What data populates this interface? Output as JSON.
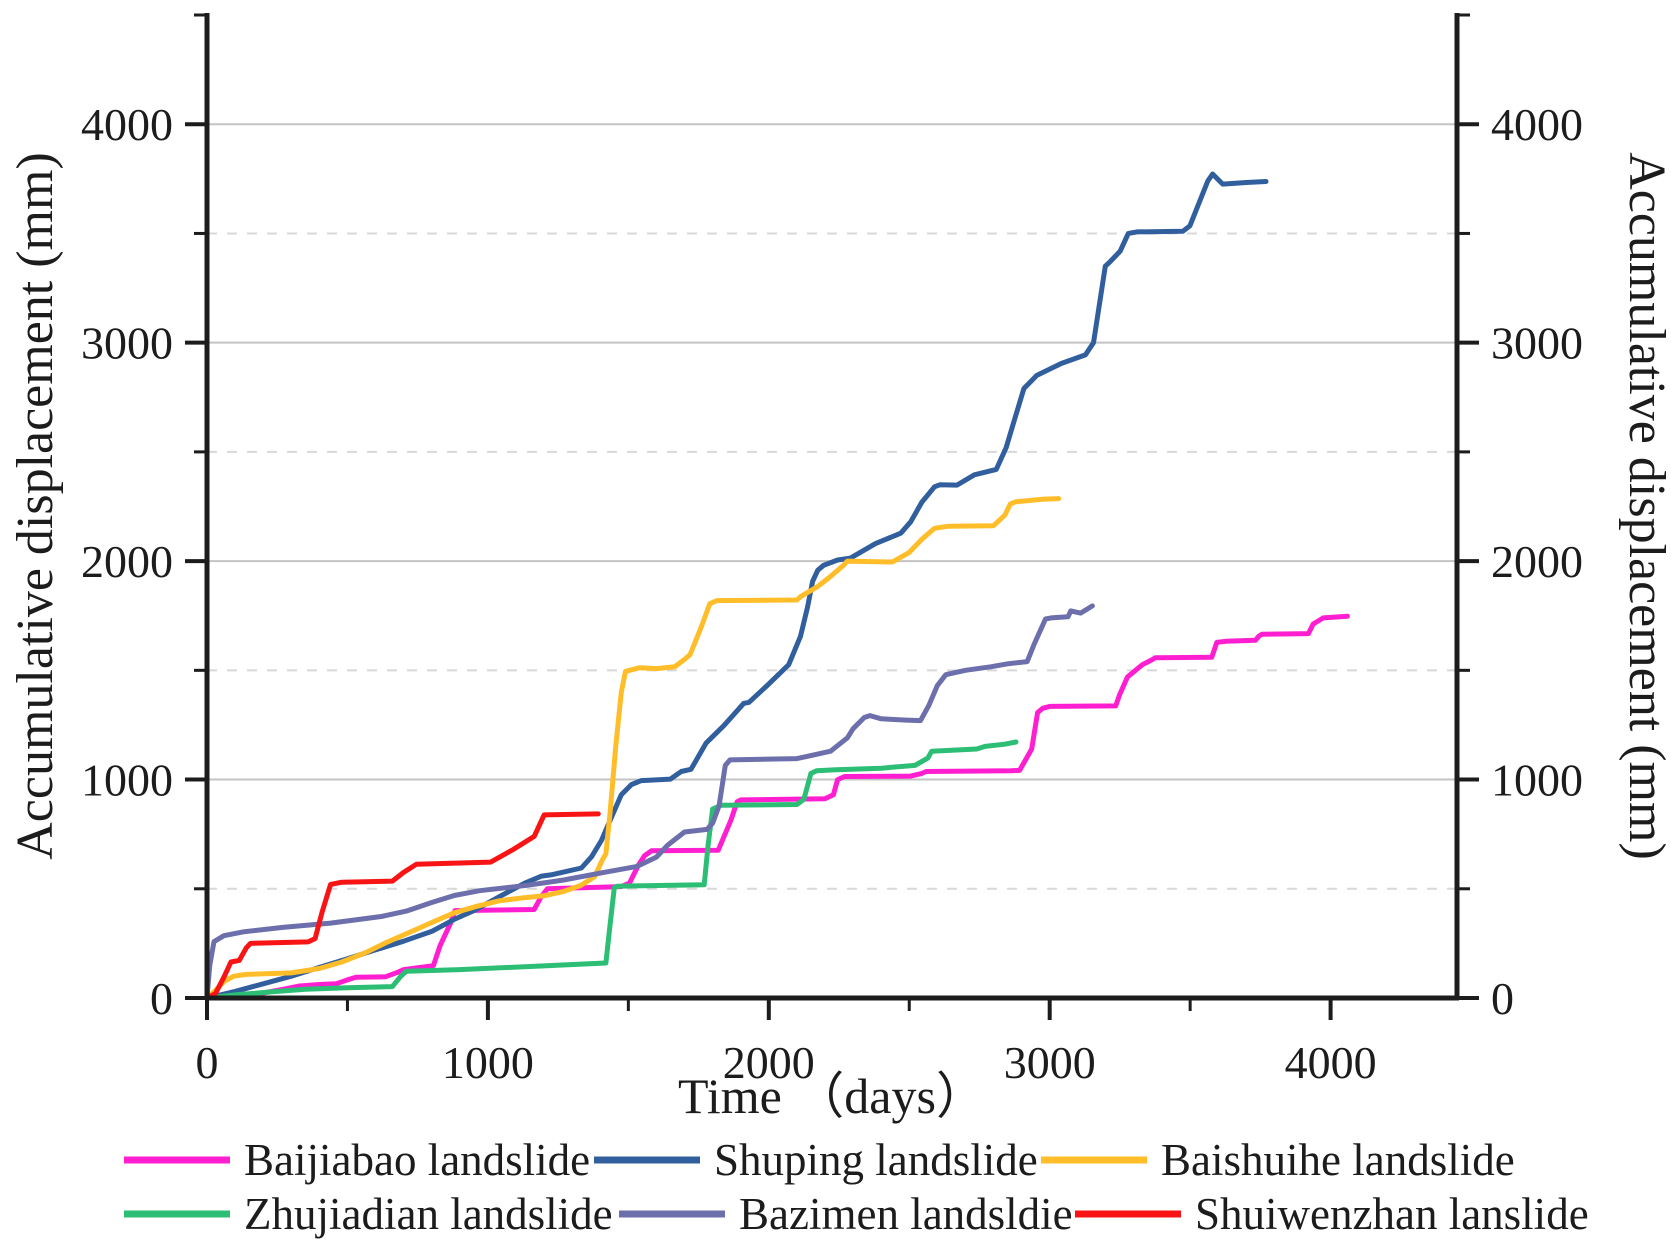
{
  "chart_data": {
    "type": "line",
    "title": "",
    "xlabel": "Time （days）",
    "ylabel_left": "Accumulative displacement (mm)",
    "ylabel_right": "Accumulative displacement (mm)",
    "xlim": [
      0,
      4450
    ],
    "ylim": [
      0,
      4500
    ],
    "x_major_ticks": [
      0,
      1000,
      2000,
      3000,
      4000
    ],
    "x_minor_ticks": [
      500,
      1500,
      2500,
      3500
    ],
    "y_major_ticks": [
      0,
      1000,
      2000,
      3000,
      4000
    ],
    "y_minor_ticks": [
      500,
      1500,
      2500,
      3500,
      4500
    ],
    "grid": {
      "major_style": "solid",
      "minor_style": "dashed",
      "major_color": "#c3c3c3",
      "minor_color": "#d8d8d8",
      "vertical_gridlines": false
    },
    "axis_color": "#1c1c1c",
    "legend_position": "bottom",
    "legend_rows": [
      [
        0,
        1,
        2
      ],
      [
        3,
        4,
        5
      ]
    ],
    "series": [
      {
        "name": "Baijiabao landslide",
        "color": "#ff1fd1",
        "points": [
          [
            0,
            0
          ],
          [
            150,
            5
          ],
          [
            210,
            25
          ],
          [
            270,
            40
          ],
          [
            330,
            55
          ],
          [
            400,
            62
          ],
          [
            460,
            65
          ],
          [
            505,
            85
          ],
          [
            530,
            95
          ],
          [
            635,
            97
          ],
          [
            680,
            118
          ],
          [
            700,
            130
          ],
          [
            806,
            148
          ],
          [
            830,
            240
          ],
          [
            866,
            340
          ],
          [
            883,
            400
          ],
          [
            1165,
            405
          ],
          [
            1190,
            465
          ],
          [
            1212,
            500
          ],
          [
            1475,
            510
          ],
          [
            1504,
            526
          ],
          [
            1536,
            609
          ],
          [
            1557,
            651
          ],
          [
            1582,
            674
          ],
          [
            1820,
            676
          ],
          [
            1865,
            814
          ],
          [
            1887,
            898
          ],
          [
            1900,
            907
          ],
          [
            2200,
            912
          ],
          [
            2230,
            930
          ],
          [
            2245,
            1000
          ],
          [
            2270,
            1014
          ],
          [
            2505,
            1016
          ],
          [
            2545,
            1028
          ],
          [
            2560,
            1037
          ],
          [
            2860,
            1040
          ],
          [
            2893,
            1042
          ],
          [
            2936,
            1140
          ],
          [
            2957,
            1307
          ],
          [
            2975,
            1326
          ],
          [
            3000,
            1335
          ],
          [
            3235,
            1337
          ],
          [
            3248,
            1386
          ],
          [
            3277,
            1470
          ],
          [
            3294,
            1488
          ],
          [
            3330,
            1526
          ],
          [
            3365,
            1549
          ],
          [
            3376,
            1558
          ],
          [
            3577,
            1560
          ],
          [
            3595,
            1628
          ],
          [
            3627,
            1633
          ],
          [
            3733,
            1638
          ],
          [
            3744,
            1656
          ],
          [
            3755,
            1665
          ],
          [
            3921,
            1668
          ],
          [
            3938,
            1712
          ],
          [
            3974,
            1740
          ],
          [
            4020,
            1744
          ],
          [
            4060,
            1748
          ]
        ]
      },
      {
        "name": "Shuping landslide",
        "color": "#315f9d",
        "points": [
          [
            0,
            0
          ],
          [
            100,
            30
          ],
          [
            200,
            65
          ],
          [
            300,
            100
          ],
          [
            400,
            140
          ],
          [
            500,
            180
          ],
          [
            600,
            220
          ],
          [
            700,
            260
          ],
          [
            800,
            305
          ],
          [
            880,
            360
          ],
          [
            950,
            400
          ],
          [
            1050,
            470
          ],
          [
            1130,
            525
          ],
          [
            1191,
            558
          ],
          [
            1230,
            565
          ],
          [
            1333,
            595
          ],
          [
            1369,
            647
          ],
          [
            1404,
            721
          ],
          [
            1440,
            828
          ],
          [
            1475,
            930
          ],
          [
            1511,
            977
          ],
          [
            1546,
            995
          ],
          [
            1650,
            1002
          ],
          [
            1688,
            1037
          ],
          [
            1723,
            1047
          ],
          [
            1777,
            1168
          ],
          [
            1840,
            1247
          ],
          [
            1911,
            1349
          ],
          [
            1929,
            1353
          ],
          [
            1996,
            1433
          ],
          [
            2071,
            1526
          ],
          [
            2113,
            1656
          ],
          [
            2138,
            1791
          ],
          [
            2156,
            1907
          ],
          [
            2174,
            1958
          ],
          [
            2195,
            1981
          ],
          [
            2245,
            2005
          ],
          [
            2291,
            2014
          ],
          [
            2380,
            2080
          ],
          [
            2470,
            2128
          ],
          [
            2505,
            2180
          ],
          [
            2545,
            2270
          ],
          [
            2590,
            2340
          ],
          [
            2610,
            2350
          ],
          [
            2670,
            2348
          ],
          [
            2732,
            2395
          ],
          [
            2810,
            2420
          ],
          [
            2845,
            2520
          ],
          [
            2873,
            2640
          ],
          [
            2908,
            2790
          ],
          [
            2954,
            2850
          ],
          [
            3042,
            2905
          ],
          [
            3127,
            2944
          ],
          [
            3156,
            3000
          ],
          [
            3198,
            3350
          ],
          [
            3216,
            3372
          ],
          [
            3251,
            3419
          ],
          [
            3280,
            3500
          ],
          [
            3310,
            3507
          ],
          [
            3474,
            3510
          ],
          [
            3499,
            3535
          ],
          [
            3563,
            3740
          ],
          [
            3580,
            3772
          ],
          [
            3616,
            3726
          ],
          [
            3700,
            3733
          ],
          [
            3770,
            3738
          ]
        ]
      },
      {
        "name": "Baishuihe landslide",
        "color": "#ffbe29",
        "points": [
          [
            0,
            0
          ],
          [
            30,
            35
          ],
          [
            60,
            75
          ],
          [
            95,
            100
          ],
          [
            140,
            108
          ],
          [
            300,
            115
          ],
          [
            400,
            135
          ],
          [
            480,
            165
          ],
          [
            560,
            205
          ],
          [
            640,
            255
          ],
          [
            720,
            300
          ],
          [
            800,
            345
          ],
          [
            880,
            390
          ],
          [
            960,
            420
          ],
          [
            1040,
            445
          ],
          [
            1120,
            458
          ],
          [
            1200,
            468
          ],
          [
            1270,
            488
          ],
          [
            1330,
            515
          ],
          [
            1380,
            555
          ],
          [
            1406,
            628
          ],
          [
            1420,
            660
          ],
          [
            1435,
            850
          ],
          [
            1455,
            1150
          ],
          [
            1475,
            1400
          ],
          [
            1490,
            1495
          ],
          [
            1540,
            1512
          ],
          [
            1600,
            1508
          ],
          [
            1665,
            1516
          ],
          [
            1700,
            1550
          ],
          [
            1720,
            1572
          ],
          [
            1760,
            1700
          ],
          [
            1790,
            1805
          ],
          [
            1815,
            1819
          ],
          [
            2100,
            1822
          ],
          [
            2113,
            1837
          ],
          [
            2174,
            1884
          ],
          [
            2220,
            1930
          ],
          [
            2266,
            1981
          ],
          [
            2280,
            2000
          ],
          [
            2440,
            1996
          ],
          [
            2500,
            2040
          ],
          [
            2545,
            2100
          ],
          [
            2590,
            2150
          ],
          [
            2640,
            2160
          ],
          [
            2800,
            2162
          ],
          [
            2840,
            2210
          ],
          [
            2860,
            2262
          ],
          [
            2880,
            2272
          ],
          [
            2980,
            2284
          ],
          [
            3032,
            2286
          ]
        ]
      },
      {
        "name": "Zhujiadian landslide",
        "color": "#2cbe74",
        "points": [
          [
            0,
            0
          ],
          [
            100,
            14
          ],
          [
            250,
            30
          ],
          [
            350,
            40
          ],
          [
            500,
            47
          ],
          [
            660,
            52
          ],
          [
            690,
            100
          ],
          [
            710,
            122
          ],
          [
            900,
            130
          ],
          [
            1150,
            144
          ],
          [
            1420,
            160
          ],
          [
            1432,
            300
          ],
          [
            1450,
            505
          ],
          [
            1460,
            512
          ],
          [
            1770,
            518
          ],
          [
            1784,
            700
          ],
          [
            1800,
            865
          ],
          [
            1830,
            882
          ],
          [
            2100,
            886
          ],
          [
            2125,
            910
          ],
          [
            2150,
            1028
          ],
          [
            2170,
            1040
          ],
          [
            2240,
            1045
          ],
          [
            2400,
            1052
          ],
          [
            2520,
            1065
          ],
          [
            2566,
            1098
          ],
          [
            2580,
            1130
          ],
          [
            2740,
            1140
          ],
          [
            2770,
            1152
          ],
          [
            2840,
            1162
          ],
          [
            2880,
            1172
          ]
        ]
      },
      {
        "name": "Bazimen landsldie",
        "color": "#6c6fac",
        "points": [
          [
            0,
            5
          ],
          [
            10,
            150
          ],
          [
            25,
            258
          ],
          [
            60,
            285
          ],
          [
            130,
            303
          ],
          [
            270,
            323
          ],
          [
            440,
            343
          ],
          [
            620,
            373
          ],
          [
            710,
            398
          ],
          [
            800,
            437
          ],
          [
            880,
            469
          ],
          [
            970,
            491
          ],
          [
            1140,
            516
          ],
          [
            1270,
            540
          ],
          [
            1410,
            574
          ],
          [
            1530,
            602
          ],
          [
            1600,
            645
          ],
          [
            1640,
            700
          ],
          [
            1700,
            760
          ],
          [
            1780,
            772
          ],
          [
            1800,
            800
          ],
          [
            1823,
            880
          ],
          [
            1845,
            1065
          ],
          [
            1862,
            1090
          ],
          [
            2100,
            1096
          ],
          [
            2140,
            1107
          ],
          [
            2220,
            1130
          ],
          [
            2280,
            1191
          ],
          [
            2300,
            1233
          ],
          [
            2340,
            1284
          ],
          [
            2360,
            1293
          ],
          [
            2400,
            1278
          ],
          [
            2490,
            1272
          ],
          [
            2540,
            1270
          ],
          [
            2570,
            1340
          ],
          [
            2600,
            1430
          ],
          [
            2630,
            1480
          ],
          [
            2700,
            1500
          ],
          [
            2790,
            1516
          ],
          [
            2850,
            1530
          ],
          [
            2920,
            1540
          ],
          [
            2945,
            1620
          ],
          [
            2985,
            1735
          ],
          [
            3005,
            1740
          ],
          [
            3065,
            1745
          ],
          [
            3075,
            1772
          ],
          [
            3110,
            1762
          ],
          [
            3152,
            1795
          ]
        ]
      },
      {
        "name": "Shuiwenzhan lanslide",
        "color": "#f81414",
        "points": [
          [
            0,
            0
          ],
          [
            30,
            20
          ],
          [
            60,
            95
          ],
          [
            85,
            165
          ],
          [
            115,
            172
          ],
          [
            140,
            230
          ],
          [
            155,
            250
          ],
          [
            360,
            257
          ],
          [
            385,
            272
          ],
          [
            410,
            395
          ],
          [
            440,
            520
          ],
          [
            480,
            530
          ],
          [
            660,
            535
          ],
          [
            700,
            575
          ],
          [
            745,
            612
          ],
          [
            1010,
            622
          ],
          [
            1090,
            680
          ],
          [
            1130,
            712
          ],
          [
            1165,
            740
          ],
          [
            1200,
            838
          ],
          [
            1393,
            843
          ]
        ]
      }
    ]
  }
}
